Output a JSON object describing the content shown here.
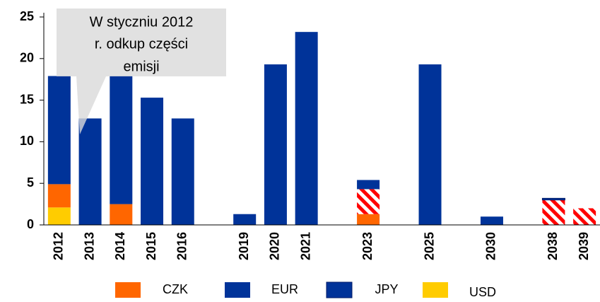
{
  "chart_data": {
    "type": "bar",
    "stacked": true,
    "annotation": [
      "W styczniu 2012",
      "r. odkup części",
      "emisji"
    ],
    "categories": [
      "2012",
      "2013",
      "2014",
      "2015",
      "2016",
      null,
      "2019",
      "2020",
      "2021",
      null,
      "2023",
      null,
      "2025",
      null,
      "2030",
      null,
      "2038",
      "2039"
    ],
    "series": [
      {
        "name": "CZK",
        "color": "#ff6600",
        "values": [
          2.8,
          null,
          2.5,
          null,
          null,
          null,
          null,
          null,
          null,
          null,
          1.3,
          null,
          null,
          null,
          null,
          null,
          null,
          null
        ]
      },
      {
        "name": "EUR",
        "color": "#003399",
        "values": [
          13.0,
          12.8,
          15.4,
          15.3,
          12.8,
          null,
          1.3,
          19.3,
          23.2,
          null,
          1.1,
          null,
          19.3,
          null,
          1.0,
          null,
          null,
          null
        ]
      },
      {
        "name": "JPY",
        "color": "#003399",
        "values": [
          null,
          null,
          null,
          null,
          null,
          null,
          null,
          null,
          null,
          null,
          null,
          null,
          null,
          null,
          null,
          null,
          0.2,
          null
        ]
      },
      {
        "name": "USD",
        "color": "#ffcc00",
        "values": [
          2.1,
          null,
          null,
          null,
          null,
          null,
          null,
          null,
          null,
          null,
          null,
          null,
          null,
          null,
          null,
          null,
          null,
          null
        ]
      },
      {
        "color": "#ff0000",
        "hatched": true,
        "values": [
          null,
          null,
          null,
          null,
          null,
          null,
          null,
          null,
          null,
          null,
          3.0,
          null,
          null,
          null,
          null,
          null,
          3.0,
          2.0
        ]
      }
    ],
    "ylim": [
      0,
      25
    ],
    "yticks": [
      0,
      5,
      10,
      15,
      20,
      25
    ],
    "grid": false
  }
}
